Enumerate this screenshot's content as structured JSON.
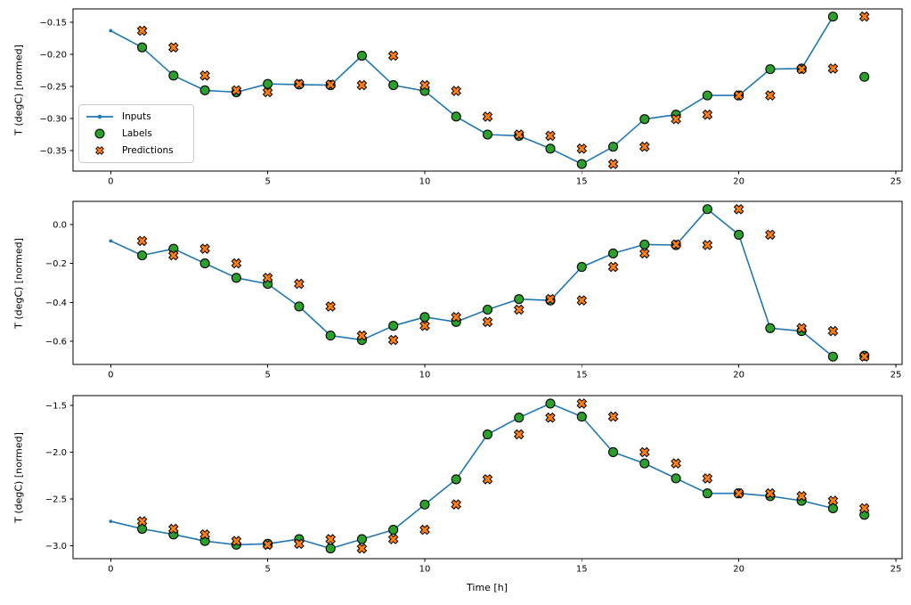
{
  "figure": {
    "xlabel": "Time [h]",
    "ylabel": "T (degC) [normed]"
  },
  "legend": {
    "location": "center left of first subplot",
    "items": [
      {
        "label": "Inputs",
        "marker": "line-with-dot",
        "color": "#1f77b4",
        "edge_color": null
      },
      {
        "label": "Labels",
        "marker": "circle",
        "color": "#2ca02c",
        "edge_color": "#000000"
      },
      {
        "label": "Predictions",
        "marker": "X",
        "color": "#ff7f0e",
        "edge_color": "#000000"
      }
    ]
  },
  "chart_data": [
    {
      "type": "line",
      "subplot": 1,
      "ylabel": "T (degC) [normed]",
      "xlabel": "",
      "grid": false,
      "legend_visible": true,
      "xlim": [
        -1.2,
        25.2
      ],
      "ylim": [
        -0.382,
        -0.129
      ],
      "xticks": [
        0,
        5,
        10,
        15,
        20,
        25
      ],
      "xtick_labels": [
        "0",
        "5",
        "10",
        "15",
        "20",
        "25"
      ],
      "yticks": [
        -0.15,
        -0.2,
        -0.25,
        -0.3,
        -0.35
      ],
      "ytick_labels": [
        "−0.15",
        "−0.20",
        "−0.25",
        "−0.30",
        "−0.35"
      ],
      "series": [
        {
          "name": "Inputs",
          "type": "line",
          "marker": "dot",
          "x": [
            0,
            1,
            2,
            3,
            4,
            5,
            6,
            7,
            8,
            9,
            10,
            11,
            12,
            13,
            14,
            15,
            16,
            17,
            18,
            19,
            20,
            21,
            22,
            23
          ],
          "y": [
            -0.163,
            -0.189,
            -0.233,
            -0.256,
            -0.259,
            -0.246,
            -0.247,
            -0.248,
            -0.202,
            -0.248,
            -0.257,
            -0.297,
            -0.325,
            -0.327,
            -0.347,
            -0.371,
            -0.344,
            -0.301,
            -0.294,
            -0.264,
            -0.264,
            -0.223,
            -0.222,
            -0.141
          ]
        },
        {
          "name": "Labels",
          "type": "scatter",
          "marker": "circle",
          "x": [
            1,
            2,
            3,
            4,
            5,
            6,
            7,
            8,
            9,
            10,
            11,
            12,
            13,
            14,
            15,
            16,
            17,
            18,
            19,
            20,
            21,
            22,
            23,
            24
          ],
          "y": [
            -0.189,
            -0.233,
            -0.256,
            -0.259,
            -0.246,
            -0.247,
            -0.248,
            -0.202,
            -0.248,
            -0.257,
            -0.297,
            -0.325,
            -0.327,
            -0.347,
            -0.371,
            -0.344,
            -0.301,
            -0.294,
            -0.264,
            -0.264,
            -0.223,
            -0.222,
            -0.141,
            -0.235
          ]
        },
        {
          "name": "Predictions",
          "type": "scatter",
          "marker": "X",
          "x": [
            1,
            2,
            3,
            4,
            5,
            6,
            7,
            8,
            9,
            10,
            11,
            12,
            13,
            14,
            15,
            16,
            17,
            18,
            19,
            20,
            21,
            22,
            23,
            24
          ],
          "y": [
            -0.163,
            -0.189,
            -0.233,
            -0.256,
            -0.259,
            -0.246,
            -0.247,
            -0.248,
            -0.202,
            -0.248,
            -0.257,
            -0.297,
            -0.325,
            -0.327,
            -0.347,
            -0.371,
            -0.344,
            -0.301,
            -0.294,
            -0.264,
            -0.264,
            -0.223,
            -0.222,
            -0.141
          ]
        }
      ]
    },
    {
      "type": "line",
      "subplot": 2,
      "ylabel": "T (degC) [normed]",
      "xlabel": "",
      "grid": false,
      "legend_visible": false,
      "xlim": [
        -1.2,
        25.2
      ],
      "ylim": [
        -0.718,
        0.118
      ],
      "xticks": [
        0,
        5,
        10,
        15,
        20,
        25
      ],
      "xtick_labels": [
        "0",
        "5",
        "10",
        "15",
        "20",
        "25"
      ],
      "yticks": [
        0.0,
        -0.2,
        -0.4,
        -0.6
      ],
      "ytick_labels": [
        "0.0",
        "−0.2",
        "−0.4",
        "−0.6"
      ],
      "series": [
        {
          "name": "Inputs",
          "type": "line",
          "marker": "dot",
          "x": [
            0,
            1,
            2,
            3,
            4,
            5,
            6,
            7,
            8,
            9,
            10,
            11,
            12,
            13,
            14,
            15,
            16,
            17,
            18,
            19,
            20,
            21,
            22,
            23
          ],
          "y": [
            -0.085,
            -0.159,
            -0.125,
            -0.2,
            -0.274,
            -0.305,
            -0.421,
            -0.57,
            -0.593,
            -0.52,
            -0.475,
            -0.5,
            -0.437,
            -0.383,
            -0.39,
            -0.218,
            -0.149,
            -0.103,
            -0.106,
            0.078,
            -0.053,
            -0.532,
            -0.547,
            -0.678
          ]
        },
        {
          "name": "Labels",
          "type": "scatter",
          "marker": "circle",
          "x": [
            1,
            2,
            3,
            4,
            5,
            6,
            7,
            8,
            9,
            10,
            11,
            12,
            13,
            14,
            15,
            16,
            17,
            18,
            19,
            20,
            21,
            22,
            23,
            24
          ],
          "y": [
            -0.159,
            -0.125,
            -0.2,
            -0.274,
            -0.305,
            -0.421,
            -0.57,
            -0.593,
            -0.52,
            -0.475,
            -0.5,
            -0.437,
            -0.383,
            -0.39,
            -0.218,
            -0.149,
            -0.103,
            -0.106,
            0.078,
            -0.053,
            -0.532,
            -0.547,
            -0.678,
            -0.673
          ]
        },
        {
          "name": "Predictions",
          "type": "scatter",
          "marker": "X",
          "x": [
            1,
            2,
            3,
            4,
            5,
            6,
            7,
            8,
            9,
            10,
            11,
            12,
            13,
            14,
            15,
            16,
            17,
            18,
            19,
            20,
            21,
            22,
            23,
            24
          ],
          "y": [
            -0.085,
            -0.159,
            -0.125,
            -0.2,
            -0.274,
            -0.305,
            -0.421,
            -0.57,
            -0.593,
            -0.52,
            -0.475,
            -0.5,
            -0.437,
            -0.383,
            -0.39,
            -0.218,
            -0.149,
            -0.103,
            -0.106,
            0.078,
            -0.053,
            -0.532,
            -0.547,
            -0.678
          ]
        }
      ]
    },
    {
      "type": "line",
      "subplot": 3,
      "ylabel": "T (degC) [normed]",
      "xlabel": "Time [h]",
      "grid": false,
      "legend_visible": false,
      "xlim": [
        -1.2,
        25.2
      ],
      "ylim": [
        -3.139,
        -1.395
      ],
      "xticks": [
        0,
        5,
        10,
        15,
        20,
        25
      ],
      "xtick_labels": [
        "0",
        "5",
        "10",
        "15",
        "20",
        "25"
      ],
      "yticks": [
        -1.5,
        -2.0,
        -2.5,
        -3.0
      ],
      "ytick_labels": [
        "−1.5",
        "−2.0",
        "−2.5",
        "−3.0"
      ],
      "series": [
        {
          "name": "Inputs",
          "type": "line",
          "marker": "dot",
          "x": [
            0,
            1,
            2,
            3,
            4,
            5,
            6,
            7,
            8,
            9,
            10,
            11,
            12,
            13,
            14,
            15,
            16,
            17,
            18,
            19,
            20,
            21,
            22,
            23
          ],
          "y": [
            -2.74,
            -2.82,
            -2.88,
            -2.95,
            -2.99,
            -2.98,
            -2.93,
            -3.03,
            -2.93,
            -2.83,
            -2.56,
            -2.29,
            -1.81,
            -1.63,
            -1.48,
            -1.62,
            -2.0,
            -2.12,
            -2.28,
            -2.44,
            -2.44,
            -2.47,
            -2.52,
            -2.6
          ]
        },
        {
          "name": "Labels",
          "type": "scatter",
          "marker": "circle",
          "x": [
            1,
            2,
            3,
            4,
            5,
            6,
            7,
            8,
            9,
            10,
            11,
            12,
            13,
            14,
            15,
            16,
            17,
            18,
            19,
            20,
            21,
            22,
            23,
            24
          ],
          "y": [
            -2.82,
            -2.88,
            -2.95,
            -2.99,
            -2.98,
            -2.93,
            -3.03,
            -2.93,
            -2.83,
            -2.56,
            -2.29,
            -1.81,
            -1.63,
            -1.48,
            -1.62,
            -2.0,
            -2.12,
            -2.28,
            -2.44,
            -2.44,
            -2.47,
            -2.52,
            -2.6,
            -2.67
          ]
        },
        {
          "name": "Predictions",
          "type": "scatter",
          "marker": "X",
          "x": [
            1,
            2,
            3,
            4,
            5,
            6,
            7,
            8,
            9,
            10,
            11,
            12,
            13,
            14,
            15,
            16,
            17,
            18,
            19,
            20,
            21,
            22,
            23,
            24
          ],
          "y": [
            -2.74,
            -2.82,
            -2.88,
            -2.95,
            -2.99,
            -2.98,
            -2.93,
            -3.03,
            -2.93,
            -2.83,
            -2.56,
            -2.29,
            -1.81,
            -1.63,
            -1.48,
            -1.62,
            -2.0,
            -2.12,
            -2.28,
            -2.44,
            -2.44,
            -2.47,
            -2.52,
            -2.6
          ]
        }
      ]
    }
  ]
}
